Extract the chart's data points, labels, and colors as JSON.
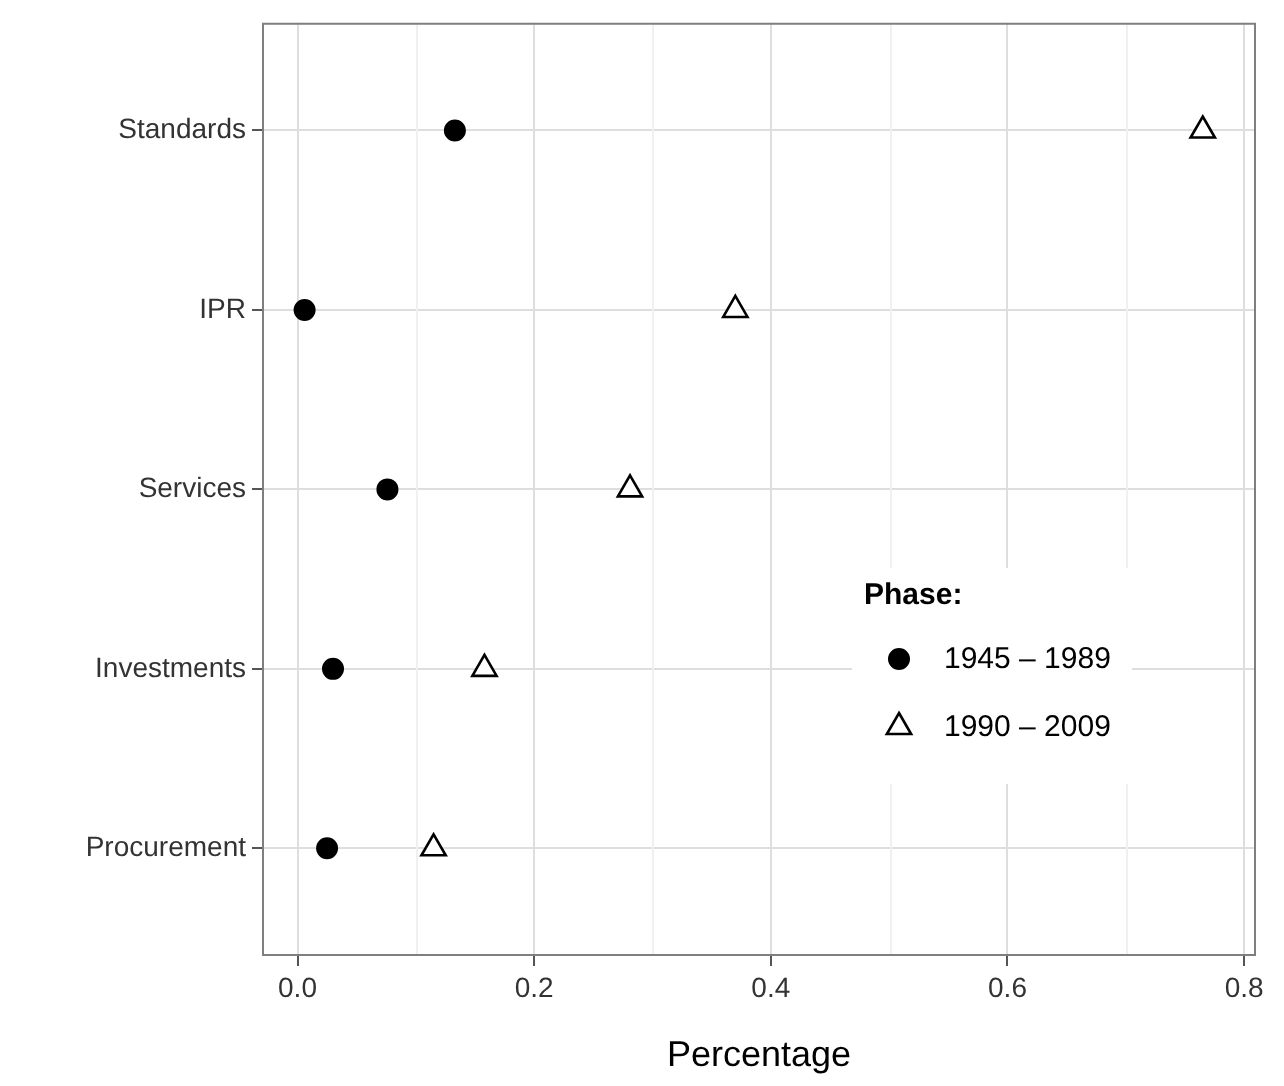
{
  "chart_data": {
    "type": "scatter",
    "orientation": "horizontal",
    "xlabel": "Percentage",
    "legend_title": "Phase:",
    "legend": "right",
    "grid": true,
    "categories": [
      "Standards",
      "IPR",
      "Services",
      "Investments",
      "Procurement"
    ],
    "xlim": [
      -0.03,
      0.81
    ],
    "xticks": [
      {
        "value": 0,
        "label": "0.0"
      },
      0.2,
      0.4,
      0.6,
      {
        "value": 0.8,
        "label": "0.8"
      }
    ],
    "series": [
      {
        "name": "1945 – 1989",
        "color": "#000000",
        "marker": "circle",
        "values": [
          0.133,
          0.006,
          0.076,
          0.03,
          0.025
        ]
      },
      {
        "name": "1990 – 2009",
        "color": "#000000",
        "marker": "triangle",
        "values": [
          0.765,
          0.37,
          0.281,
          0.158,
          0.115
        ]
      }
    ]
  }
}
